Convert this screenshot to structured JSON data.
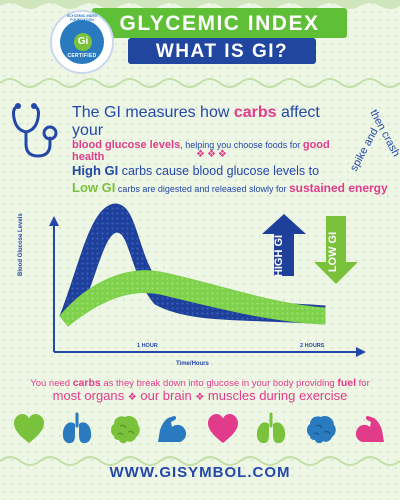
{
  "header": {
    "title": "GLYCEMIC INDEX",
    "subtitle": "WHAT IS GI?",
    "seal": {
      "ring_text": "GLYCEMIC INDEX FOUNDATION",
      "mark": "Gi",
      "label": "CERTIFIED"
    }
  },
  "intro": {
    "lead": "The GI measures how",
    "carbs": "carbs",
    "tail": "affect your",
    "levels": "blood glucose levels",
    "helping": ", helping you choose foods for",
    "health": "good health"
  },
  "spike_note": {
    "line1": "spike and",
    "line2": "then crash"
  },
  "divider": "❖❖❖",
  "high_line": {
    "strong": "High GI",
    "text": "carbs cause blood glucose levels to"
  },
  "low_line": {
    "strong": "Low GI",
    "text": "carbs are digested and released slowly for",
    "emph": "sustained energy"
  },
  "chart_data": {
    "type": "line",
    "xlabel": "Time/Hours",
    "ylabel": "Blood Glucose Levels",
    "ticks": [
      "1 HOUR",
      "2 HOURS"
    ],
    "series": [
      {
        "name": "HIGH GI",
        "color": "#1e3f9a"
      },
      {
        "name": "LOW GI",
        "color": "#7ed14b"
      }
    ]
  },
  "arrows": {
    "high": "HIGH GI",
    "low": "LOW GI"
  },
  "fuel": {
    "a_lead": "You need",
    "a_carbs": "carbs",
    "a_mid": "as they break down into glucose in your body providing",
    "a_fuel": "fuel",
    "a_tail": "for",
    "b1": "most organs",
    "b2": "our brain",
    "b3": "muscles during exercise",
    "dot": "❖"
  },
  "icons": [
    "heart-icon",
    "lungs-icon",
    "brain-icon",
    "muscle-arm-icon",
    "heart-icon",
    "lungs-icon",
    "brain-icon",
    "muscle-arm-icon"
  ],
  "colors": {
    "blue": "#2348a8",
    "green": "#5fbf36",
    "pink": "#e23b8a",
    "bg": "#eef6e6"
  },
  "url": "WWW.GISYMBOL.COM"
}
